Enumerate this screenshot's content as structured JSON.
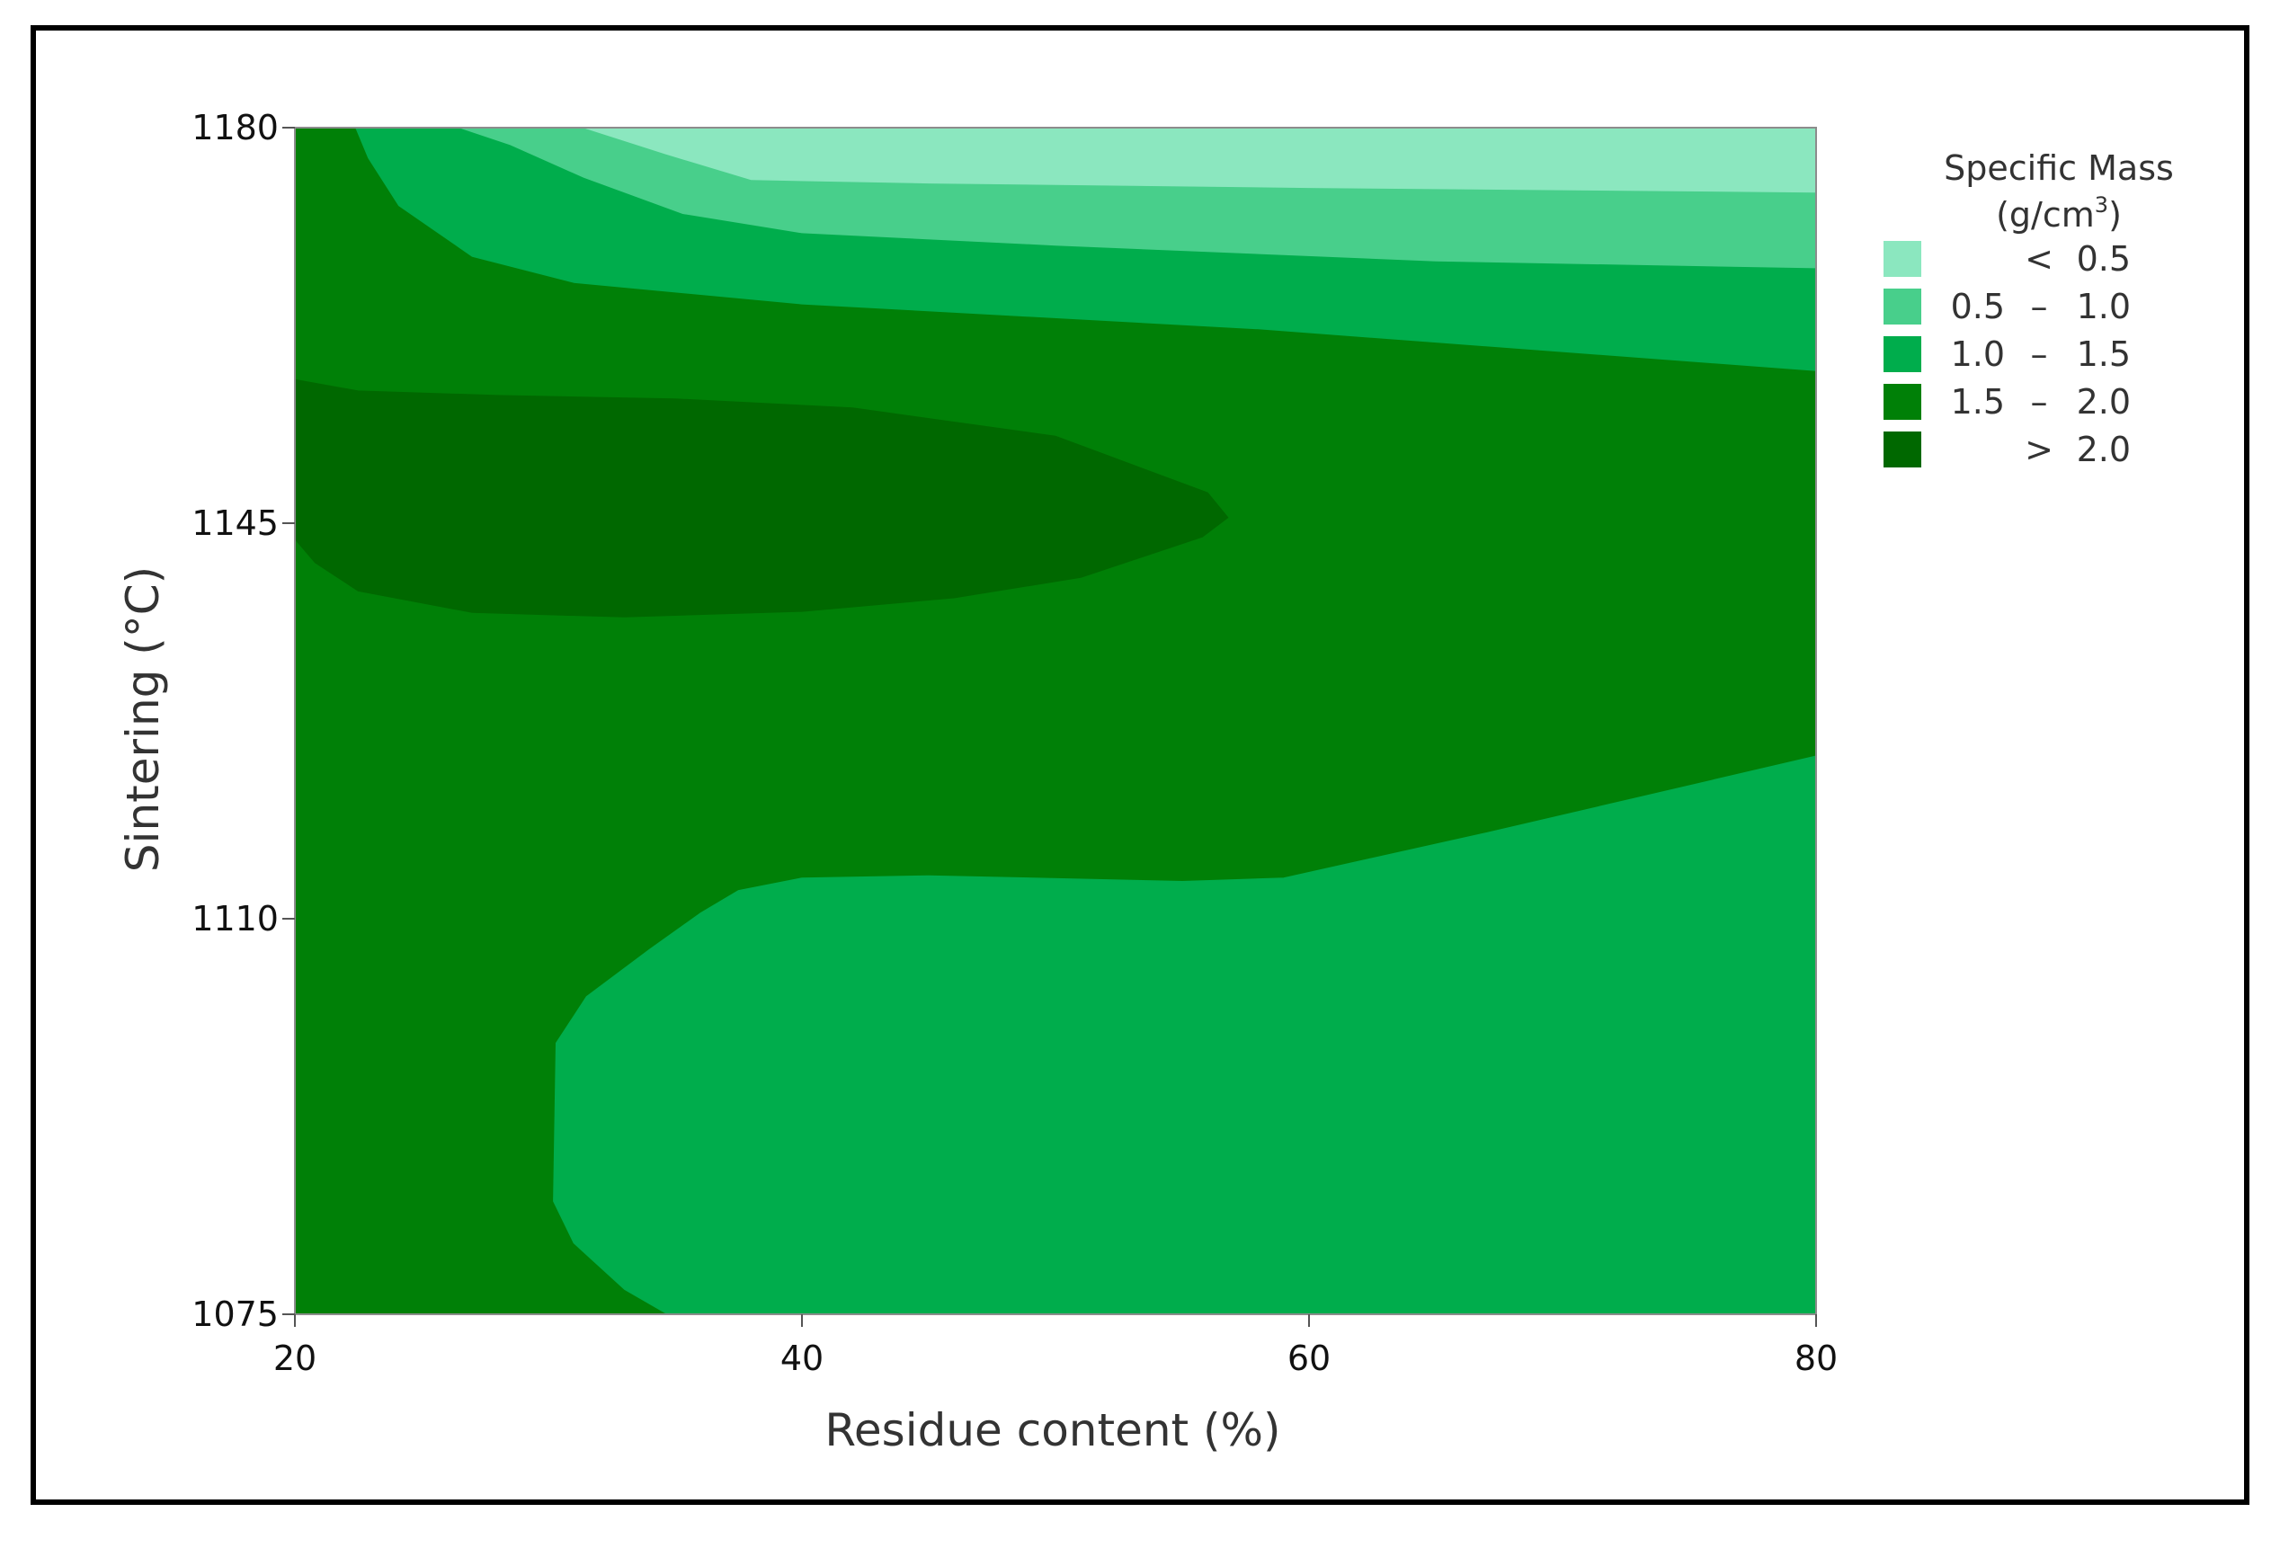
{
  "chart_data": {
    "type": "contour",
    "xlabel": "Residue content (%)",
    "ylabel": "Sintering (°C)",
    "xlim": [
      20,
      80
    ],
    "ylim": [
      1075,
      1180
    ],
    "x_ticks": [
      "20",
      "40",
      "60",
      "80"
    ],
    "y_ticks": [
      "1075",
      "1110",
      "1145",
      "1180"
    ],
    "legend": {
      "title_line1": "Specific Mass",
      "title_line2_base": "(g/cm",
      "title_line2_sup": "3",
      "title_line2_end": ")",
      "placement": "right",
      "entries": [
        {
          "low": "",
          "op": "<",
          "high": "0.5",
          "color": "#8be7bf"
        },
        {
          "low": "0.5",
          "op": "–",
          "high": "1.0",
          "color": "#48cf8b"
        },
        {
          "low": "1.0",
          "op": "–",
          "high": "1.5",
          "color": "#00ad4c"
        },
        {
          "low": "1.5",
          "op": "–",
          "high": "2.0",
          "color": "#008007"
        },
        {
          "low": "",
          "op": ">",
          "high": "2.0",
          "color": "#006800"
        }
      ]
    },
    "regions": [
      {
        "level": "1.5 – 2.0",
        "color": "#008007",
        "boundary": [
          [
            20,
            1075
          ],
          [
            80,
            1075
          ],
          [
            80,
            1180
          ],
          [
            20,
            1180
          ]
        ]
      },
      {
        "level": "1.0 – 1.5",
        "color": "#00ad4c",
        "boundary": [
          [
            22.4,
            1180
          ],
          [
            80,
            1180
          ],
          [
            80,
            1158.5
          ],
          [
            58,
            1162.2
          ],
          [
            40,
            1164.4
          ],
          [
            31,
            1166.3
          ],
          [
            27,
            1168.6
          ],
          [
            24.1,
            1173.1
          ],
          [
            22.9,
            1177.3
          ]
        ]
      },
      {
        "level": "0.5 – 1.0",
        "color": "#48cf8b",
        "boundary": [
          [
            26.5,
            1180
          ],
          [
            80,
            1180
          ],
          [
            80,
            1167.6
          ],
          [
            65,
            1168.2
          ],
          [
            50,
            1169.6
          ],
          [
            40,
            1170.7
          ],
          [
            35.3,
            1172.4
          ],
          [
            31.4,
            1175.6
          ],
          [
            28.5,
            1178.5
          ]
        ]
      },
      {
        "level": "< 0.5",
        "color": "#8be7bf",
        "boundary": [
          [
            31.4,
            1180
          ],
          [
            80,
            1180
          ],
          [
            80,
            1174.3
          ],
          [
            60,
            1174.7
          ],
          [
            45,
            1175.1
          ],
          [
            38,
            1175.4
          ],
          [
            34.6,
            1177.7
          ]
        ]
      },
      {
        "level": "> 2.0",
        "color": "#006800",
        "boundary": [
          [
            20,
            1157.7
          ],
          [
            22.5,
            1156.7
          ],
          [
            28,
            1156.3
          ],
          [
            35,
            1156
          ],
          [
            42,
            1155.2
          ],
          [
            50,
            1152.7
          ],
          [
            56,
            1147.7
          ],
          [
            56.8,
            1145.5
          ],
          [
            55.8,
            1143.8
          ],
          [
            51,
            1140.2
          ],
          [
            46,
            1138.4
          ],
          [
            40,
            1137.2
          ],
          [
            33,
            1136.7
          ],
          [
            27,
            1137.1
          ],
          [
            22.5,
            1139
          ],
          [
            20.8,
            1141.5
          ],
          [
            20,
            1143.6
          ]
        ]
      },
      {
        "level": "1.0 – 1.5",
        "color": "#00ad4c",
        "boundary": [
          [
            34.7,
            1075
          ],
          [
            80,
            1075
          ],
          [
            80,
            1124.4
          ],
          [
            67,
            1117.6
          ],
          [
            59,
            1113.6
          ],
          [
            55,
            1113.3
          ],
          [
            45,
            1113.8
          ],
          [
            40,
            1113.6
          ],
          [
            37.5,
            1112.5
          ],
          [
            36,
            1110.5
          ],
          [
            34,
            1107.3
          ],
          [
            31.5,
            1103.1
          ],
          [
            30.3,
            1099
          ],
          [
            30.2,
            1085
          ],
          [
            31,
            1081.3
          ],
          [
            33,
            1077.2
          ]
        ]
      }
    ]
  }
}
